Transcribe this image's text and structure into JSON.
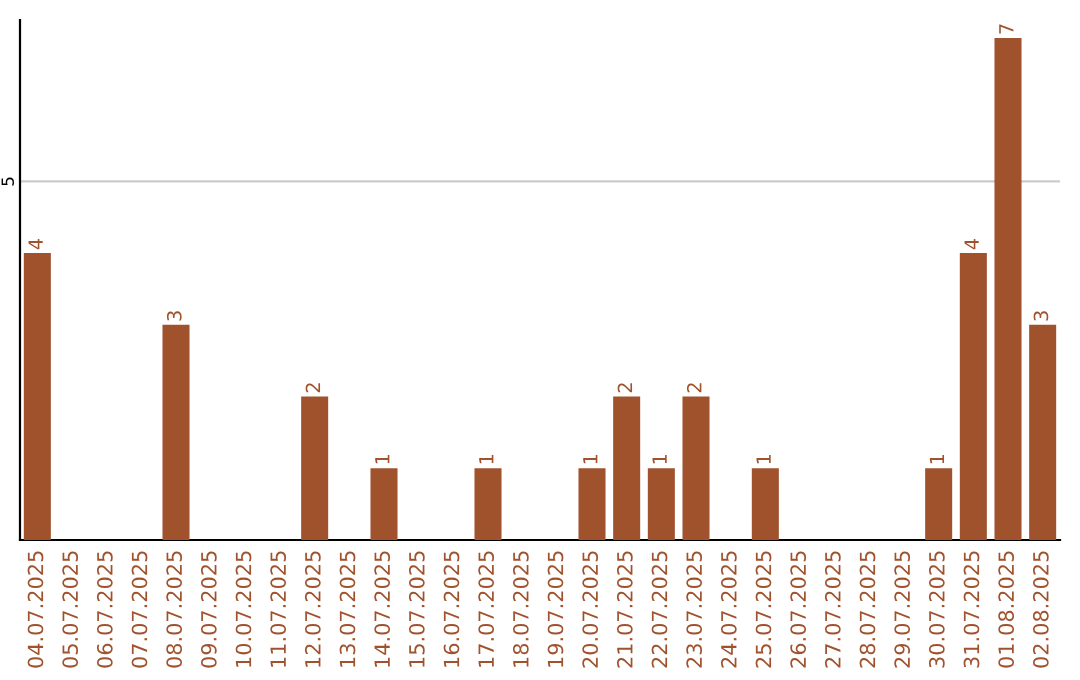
{
  "chart_data": {
    "type": "bar",
    "categories": [
      "04.07.2025",
      "05.07.2025",
      "06.07.2025",
      "07.07.2025",
      "08.07.2025",
      "09.07.2025",
      "10.07.2025",
      "11.07.2025",
      "12.07.2025",
      "13.07.2025",
      "14.07.2025",
      "15.07.2025",
      "16.07.2025",
      "17.07.2025",
      "18.07.2025",
      "19.07.2025",
      "20.07.2025",
      "21.07.2025",
      "22.07.2025",
      "23.07.2025",
      "24.07.2025",
      "25.07.2025",
      "26.07.2025",
      "27.07.2025",
      "28.07.2025",
      "29.07.2025",
      "30.07.2025",
      "31.07.2025",
      "01.08.2025",
      "02.08.2025"
    ],
    "values": [
      4,
      0,
      0,
      0,
      3,
      0,
      0,
      0,
      2,
      0,
      1,
      0,
      0,
      1,
      0,
      0,
      1,
      2,
      1,
      2,
      0,
      1,
      0,
      0,
      0,
      0,
      1,
      4,
      7,
      3
    ],
    "value_labels": [
      "4",
      null,
      null,
      null,
      "3",
      null,
      null,
      null,
      "2",
      null,
      "1",
      null,
      null,
      "1",
      null,
      null,
      "1",
      "2",
      "1",
      "2",
      null,
      "1",
      null,
      null,
      null,
      null,
      "1",
      "4",
      "7",
      "3"
    ],
    "color": "#a0522d",
    "ylim": [
      0,
      7.25
    ],
    "yticks": [
      5
    ],
    "grid": "y"
  }
}
